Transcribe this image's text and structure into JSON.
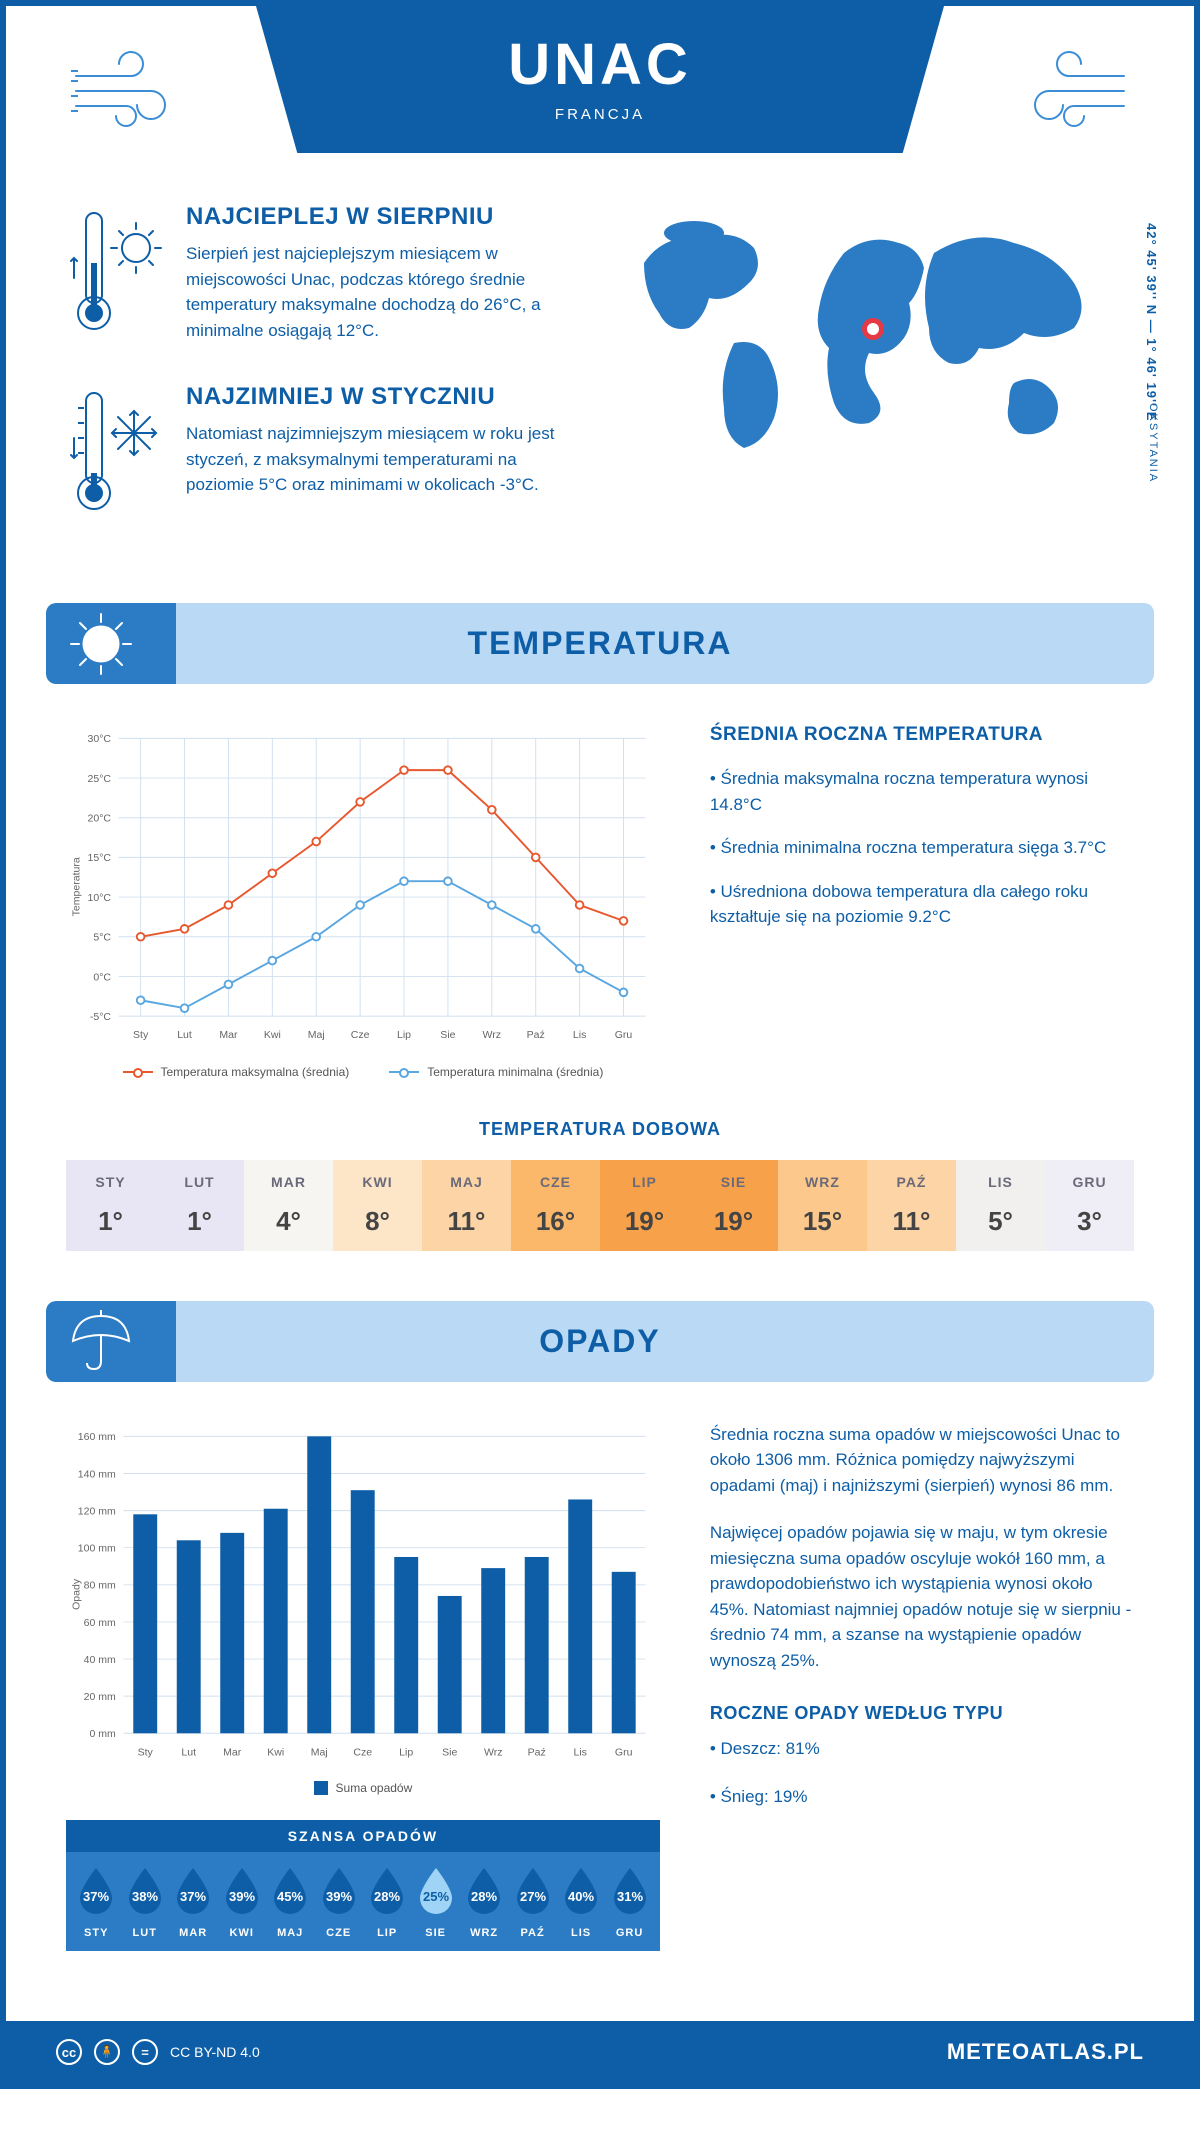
{
  "header": {
    "title": "UNAC",
    "subtitle": "FRANCJA"
  },
  "location": {
    "coords": "42° 45' 39'' N — 1° 46' 19'' E",
    "region": "OKSYTANIA"
  },
  "warmest": {
    "title": "NAJCIEPLEJ W SIERPNIU",
    "text": "Sierpień jest najcieplejszym miesiącem w miejscowości Unac, podczas którego średnie temperatury maksymalne dochodzą do 26°C, a minimalne osiągają 12°C."
  },
  "coldest": {
    "title": "NAJZIMNIEJ W STYCZNIU",
    "text": "Natomiast najzimniejszym miesiącem w roku jest styczeń, z maksymalnymi temperaturami na poziomie 5°C oraz minimami w okolicach -3°C."
  },
  "sections": {
    "temp": "TEMPERATURA",
    "precip": "OPADY"
  },
  "months": [
    "Sty",
    "Lut",
    "Mar",
    "Kwi",
    "Maj",
    "Cze",
    "Lip",
    "Sie",
    "Wrz",
    "Paź",
    "Lis",
    "Gru"
  ],
  "months_upper": [
    "STY",
    "LUT",
    "MAR",
    "KWI",
    "MAJ",
    "CZE",
    "LIP",
    "SIE",
    "WRZ",
    "PAŹ",
    "LIS",
    "GRU"
  ],
  "temp_chart": {
    "type": "line",
    "ylabel": "Temperatura",
    "ylim": [
      -5,
      30
    ],
    "ytick_step": 5,
    "ytick_suffix": "°C",
    "grid_color": "#d0e0f0",
    "background_color": "#ffffff",
    "max_series": {
      "color": "#e8582e",
      "values": [
        5,
        6,
        9,
        13,
        17,
        22,
        26,
        26,
        21,
        15,
        9,
        7
      ],
      "label": "Temperatura maksymalna (średnia)"
    },
    "min_series": {
      "color": "#5aa6e0",
      "values": [
        -3,
        -4,
        -1,
        2,
        5,
        9,
        12,
        12,
        9,
        6,
        1,
        -2
      ],
      "label": "Temperatura minimalna (średnia)"
    }
  },
  "temp_info": {
    "title": "ŚREDNIA ROCZNA TEMPERATURA",
    "bullets": [
      "• Średnia maksymalna roczna temperatura wynosi 14.8°C",
      "• Średnia minimalna roczna temperatura sięga 3.7°C",
      "• Uśredniona dobowa temperatura dla całego roku kształtuje się na poziomie 9.2°C"
    ]
  },
  "daily_temp": {
    "title": "TEMPERATURA DOBOWA",
    "values": [
      "1°",
      "1°",
      "4°",
      "8°",
      "11°",
      "16°",
      "19°",
      "19°",
      "15°",
      "11°",
      "5°",
      "3°"
    ],
    "colors": [
      "#e8e6f4",
      "#e8e6f4",
      "#f7f5f1",
      "#fde5c8",
      "#fcd4a5",
      "#fbb76a",
      "#f7a14a",
      "#f7a14a",
      "#fcc88b",
      "#fcd4a5",
      "#f1f0ef",
      "#efeef7"
    ]
  },
  "precip_chart": {
    "type": "bar",
    "ylabel": "Opady",
    "ylim": [
      0,
      160
    ],
    "ytick_step": 20,
    "ytick_suffix": " mm",
    "bar_color": "#0d5ea6",
    "grid_color": "#d0e0f0",
    "values": [
      118,
      104,
      108,
      121,
      160,
      131,
      95,
      74,
      89,
      95,
      126,
      87
    ],
    "legend": "Suma opadów"
  },
  "precip_info": {
    "p1": "Średnia roczna suma opadów w miejscowości Unac to około 1306 mm. Różnica pomiędzy najwyższymi opadami (maj) i najniższymi (sierpień) wynosi 86 mm.",
    "p2": "Najwięcej opadów pojawia się w maju, w tym okresie miesięczna suma opadów oscyluje wokół 160 mm, a prawdopodobieństwo ich wystąpienia wynosi około 45%. Natomiast najmniej opadów notuje się w sierpniu - średnio 74 mm, a szanse na wystąpienie opadów wynoszą 25%.",
    "type_title": "ROCZNE OPADY WEDŁUG TYPU",
    "type_bullets": [
      "• Deszcz: 81%",
      "• Śnieg: 19%"
    ]
  },
  "chance": {
    "title": "SZANSA OPADÓW",
    "values": [
      "37%",
      "38%",
      "37%",
      "39%",
      "45%",
      "39%",
      "28%",
      "25%",
      "28%",
      "27%",
      "40%",
      "31%"
    ],
    "min_index": 7,
    "drop_fill_normal": "#0d5ea6",
    "drop_fill_min": "#9fd4f7",
    "drop_text_normal": "#ffffff",
    "drop_text_min": "#0d5ea6"
  },
  "footer": {
    "license": "CC BY-ND 4.0",
    "site": "METEOATLAS.PL"
  }
}
